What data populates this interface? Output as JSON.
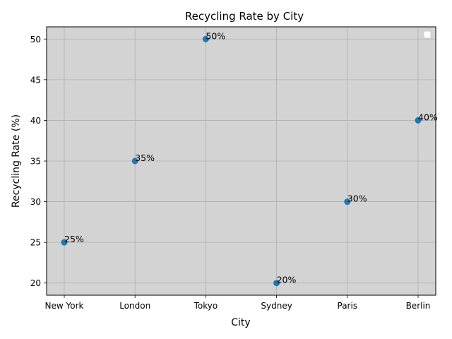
{
  "chart_data": {
    "type": "scatter",
    "title": "Recycling Rate by City",
    "xlabel": "City",
    "ylabel": "Recycling Rate (%)",
    "categories": [
      "New York",
      "London",
      "Tokyo",
      "Sydney",
      "Paris",
      "Berlin"
    ],
    "values": [
      25,
      35,
      50,
      20,
      30,
      40
    ],
    "data_labels": [
      "25%",
      "35%",
      "50%",
      "20%",
      "30%",
      "40%"
    ],
    "ylim": [
      18.5,
      51.5
    ],
    "yticks": [
      20,
      25,
      30,
      35,
      40,
      45,
      50
    ],
    "grid": true,
    "legend": "top-right",
    "colors": {
      "plot_background": "#d3d3d3",
      "marker": "#1f77b4",
      "grid": "#b0b0b0",
      "legend_background": "#ffffff",
      "legend_border": "#cccccc"
    }
  }
}
